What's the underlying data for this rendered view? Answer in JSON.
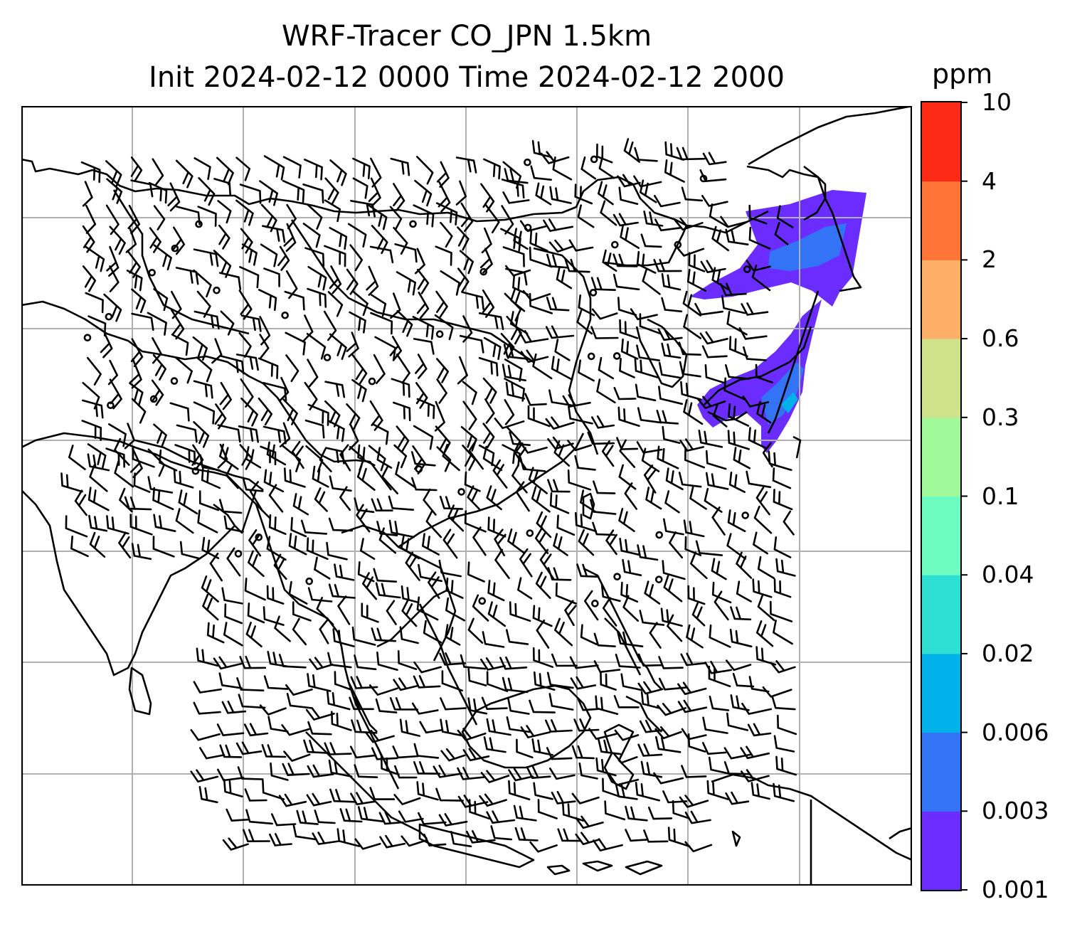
{
  "title": {
    "line1": "WRF-Tracer CO_JPN 1.5km",
    "line2": "Init 2024-02-12 0000 Time 2024-02-12 2000"
  },
  "colorbar": {
    "unit": "ppm",
    "levels": [
      "0.001",
      "0.003",
      "0.006",
      "0.02",
      "0.04",
      "0.1",
      "0.3",
      "0.6",
      "2",
      "4",
      "10"
    ],
    "colors": [
      "#6a2cff",
      "#3374f6",
      "#02b0ea",
      "#2ee0d4",
      "#6ffcc0",
      "#a0fa9a",
      "#cfe18a",
      "#fdaf67",
      "#ff7538",
      "#fe2a16"
    ]
  },
  "map": {
    "plume_colors": {
      "main": "#6a2cff",
      "inner": "#3374f6",
      "core": "#02b0ea"
    },
    "grid": {
      "visible": true,
      "color": "#b0b0b0"
    },
    "coastline_color": "#000000",
    "wind_barb_color": "#000000"
  }
}
